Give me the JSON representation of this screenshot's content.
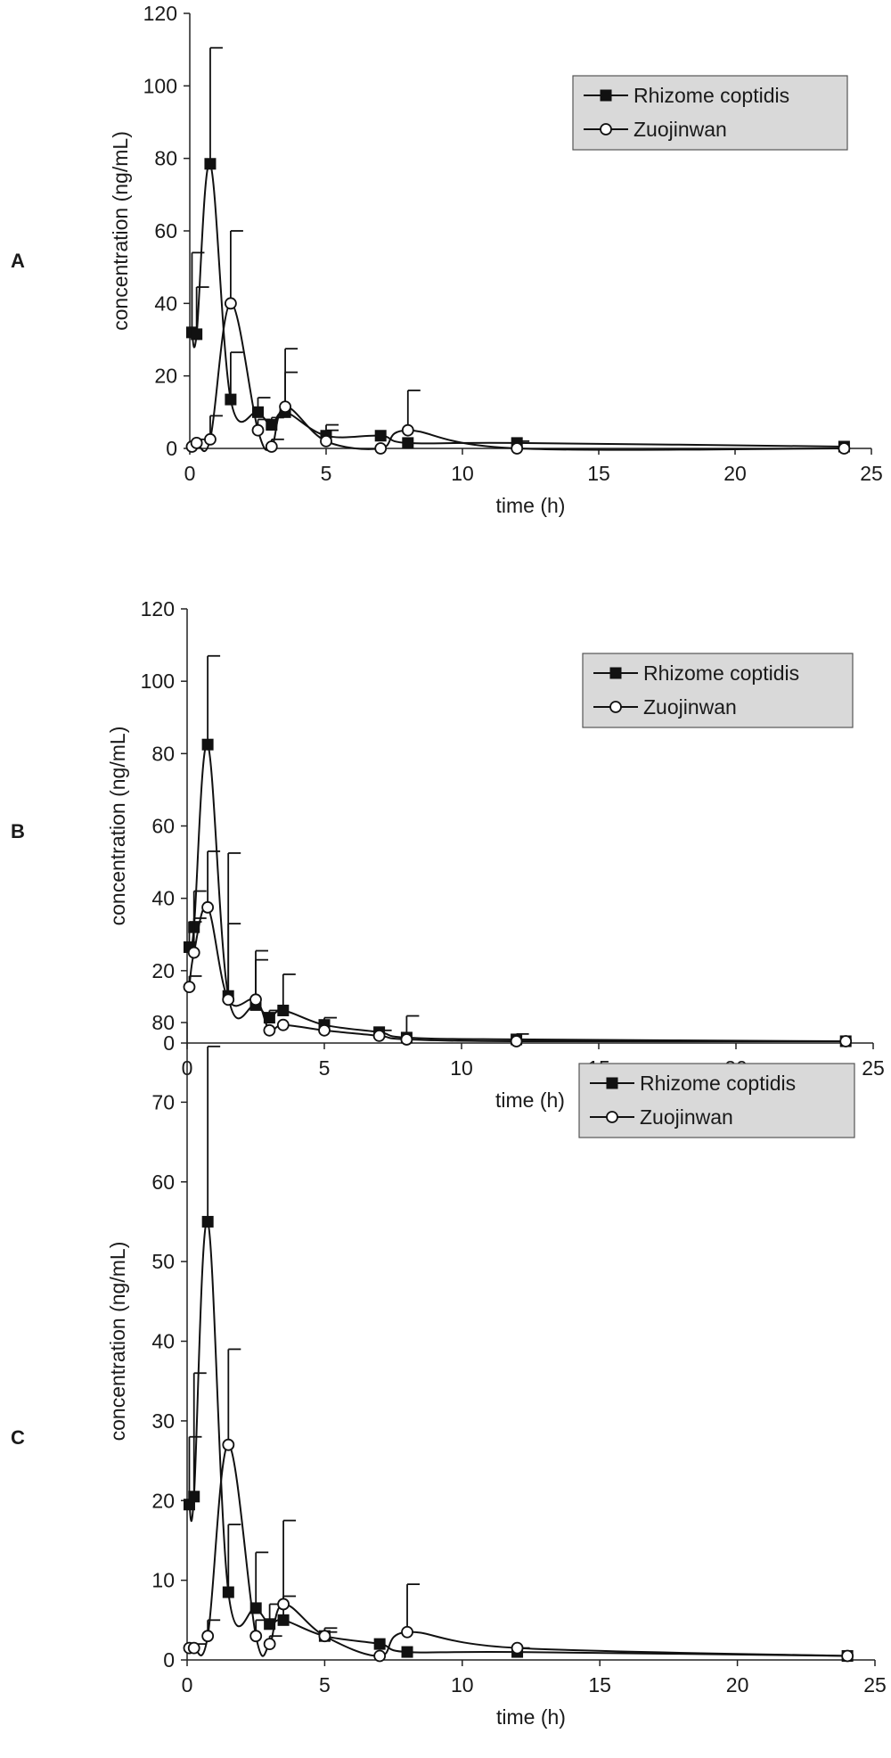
{
  "chart_data": [
    {
      "type": "line",
      "panel_label": "A",
      "xlabel": "time (h)",
      "ylabel": "concentration (ng/mL)",
      "xlim": [
        0,
        25
      ],
      "ylim": [
        0,
        120
      ],
      "xticks": [
        0,
        5,
        10,
        15,
        20,
        25
      ],
      "yticks": [
        0,
        20,
        40,
        60,
        80,
        100,
        120
      ],
      "grid": false,
      "legend_position": "top-right",
      "series": [
        {
          "name": "Rhizome coptidis",
          "marker": "filled-square",
          "x": [
            0.08,
            0.25,
            0.75,
            1.5,
            2.5,
            3.0,
            3.5,
            5,
            7,
            8,
            12,
            24
          ],
          "y": [
            32,
            31.5,
            78.5,
            13.5,
            10,
            6.5,
            10,
            3.5,
            3.5,
            1.5,
            1.5,
            0.5
          ],
          "error": [
            22,
            13,
            32,
            13,
            4,
            2,
            11,
            3,
            0,
            0,
            0.5,
            0
          ]
        },
        {
          "name": "Zuojinwan",
          "marker": "open-circle",
          "x": [
            0.08,
            0.25,
            0.75,
            1.5,
            2.5,
            3.0,
            3.5,
            5,
            7,
            8,
            12,
            24
          ],
          "y": [
            0.5,
            1.5,
            2.5,
            40,
            5,
            0.5,
            11.5,
            2,
            0,
            5,
            0,
            0
          ],
          "error": [
            0,
            1,
            6.5,
            20,
            3,
            2,
            16,
            3,
            0,
            11,
            0,
            0
          ]
        }
      ]
    },
    {
      "type": "line",
      "panel_label": "B",
      "xlabel": "time (h)",
      "ylabel": "concentration (ng/mL)",
      "xlim": [
        0,
        25
      ],
      "ylim": [
        0,
        120
      ],
      "xticks": [
        0,
        5,
        10,
        15,
        20,
        25
      ],
      "yticks": [
        0,
        20,
        40,
        60,
        80,
        100,
        120
      ],
      "grid": false,
      "legend_position": "top-right",
      "series": [
        {
          "name": "Rhizome coptidis",
          "marker": "filled-square",
          "x": [
            0.08,
            0.25,
            0.75,
            1.5,
            2.5,
            3.0,
            3.5,
            5,
            7,
            8,
            12,
            24
          ],
          "y": [
            26.5,
            32,
            82.5,
            13,
            10.5,
            7,
            9,
            5,
            3,
            1.5,
            1,
            0.5
          ],
          "error": [
            7,
            10,
            24.5,
            39.5,
            15,
            2,
            10,
            2,
            0.5,
            6,
            1.5,
            0
          ]
        },
        {
          "name": "Zuojinwan",
          "marker": "open-circle",
          "x": [
            0.08,
            0.25,
            0.75,
            1.5,
            2.5,
            3.0,
            3.5,
            5,
            7,
            8,
            12,
            24
          ],
          "y": [
            15.5,
            25,
            37.5,
            12,
            12,
            3.5,
            5,
            3.5,
            2,
            1,
            0.5,
            0.5
          ],
          "error": [
            3,
            9.5,
            15.5,
            21,
            11,
            0,
            0,
            0,
            0,
            0,
            0,
            0
          ]
        }
      ]
    },
    {
      "type": "line",
      "panel_label": "C",
      "xlabel": "time (h)",
      "ylabel": "concentration (ng/mL)",
      "xlim": [
        0,
        25
      ],
      "ylim": [
        0,
        80
      ],
      "xticks": [
        0,
        5,
        10,
        15,
        20,
        25
      ],
      "yticks": [
        0,
        10,
        20,
        30,
        40,
        50,
        60,
        70,
        80
      ],
      "grid": false,
      "legend_position": "top-right",
      "series": [
        {
          "name": "Rhizome coptidis",
          "marker": "filled-square",
          "x": [
            0.08,
            0.25,
            0.75,
            1.5,
            2.5,
            3.0,
            3.5,
            5,
            7,
            8,
            12,
            24
          ],
          "y": [
            19.5,
            20.5,
            55,
            8.5,
            6.5,
            4.5,
            5,
            3,
            2,
            1,
            1,
            0.5
          ],
          "error": [
            8.5,
            15.5,
            22,
            8.5,
            7,
            2.5,
            12.5,
            1,
            0,
            0,
            0.5,
            0
          ]
        },
        {
          "name": "Zuojinwan",
          "marker": "open-circle",
          "x": [
            0.08,
            0.25,
            0.75,
            1.5,
            2.5,
            3.0,
            3.5,
            5,
            7,
            8,
            12,
            24
          ],
          "y": [
            1.5,
            1.5,
            3,
            27,
            3,
            2,
            7,
            3,
            0.5,
            3.5,
            1.5,
            0.5
          ],
          "error": [
            0,
            0.5,
            2,
            12,
            2,
            1,
            1,
            0.5,
            0,
            6,
            0,
            0
          ]
        }
      ]
    }
  ]
}
